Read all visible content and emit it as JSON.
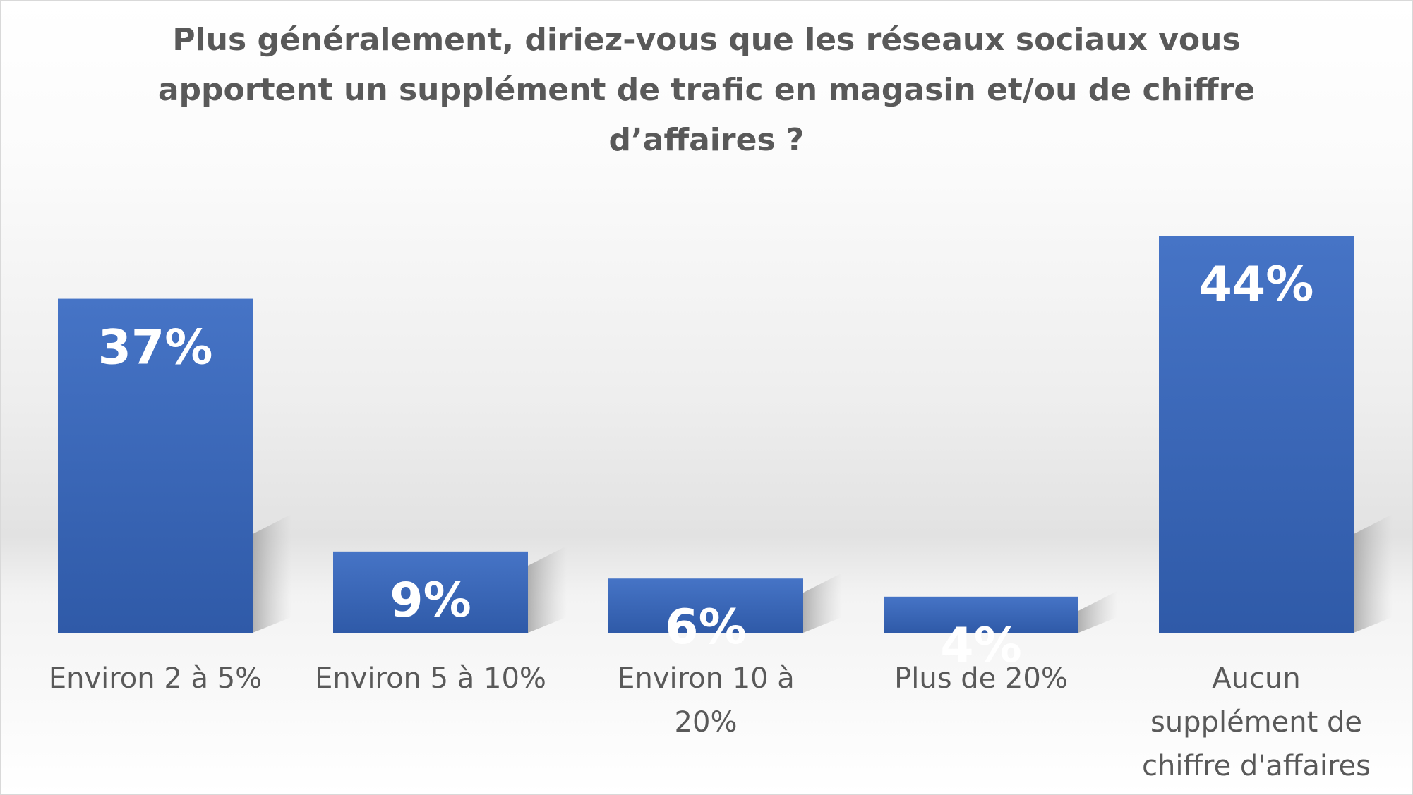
{
  "chart_data": {
    "type": "bar",
    "title": "Plus généralement, diriez-vous que les réseaux sociaux vous apportent un supplément de trafic en magasin et/ou de chiffre d’affaires ?",
    "categories": [
      "Environ 2 à 5%",
      "Environ 5 à 10%",
      "Environ 10 à 20%",
      "Plus de 20%",
      "Aucun supplément de chiffre d'affaires"
    ],
    "values": [
      37,
      9,
      6,
      4,
      44
    ],
    "data_labels": [
      "37%",
      "9%",
      "6%",
      "4%",
      "44%"
    ],
    "unit": "%",
    "xlabel": "",
    "ylabel": "",
    "ylim": [
      0,
      44
    ],
    "grid": false,
    "legend": "none",
    "bar_color": "#4472C4",
    "label_color": "#595959",
    "data_label_color": "#FFFFFF"
  }
}
